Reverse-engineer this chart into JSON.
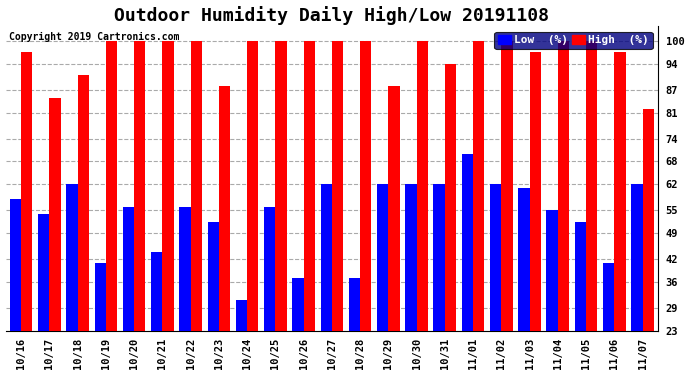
{
  "title": "Outdoor Humidity Daily High/Low 20191108",
  "copyright": "Copyright 2019 Cartronics.com",
  "categories": [
    "10/16",
    "10/17",
    "10/18",
    "10/19",
    "10/20",
    "10/21",
    "10/22",
    "10/23",
    "10/24",
    "10/25",
    "10/26",
    "10/27",
    "10/28",
    "10/29",
    "10/30",
    "10/31",
    "11/01",
    "11/02",
    "11/03",
    "11/04",
    "11/05",
    "11/06",
    "11/07"
  ],
  "high_values": [
    97,
    85,
    91,
    100,
    100,
    100,
    100,
    88,
    100,
    100,
    100,
    100,
    100,
    88,
    100,
    94,
    100,
    100,
    97,
    100,
    100,
    97,
    82
  ],
  "low_values": [
    58,
    54,
    62,
    41,
    56,
    44,
    56,
    52,
    31,
    56,
    37,
    62,
    37,
    62,
    62,
    62,
    70,
    62,
    61,
    55,
    52,
    41,
    62
  ],
  "bg_color": "#ffffff",
  "plot_bg_color": "#ffffff",
  "high_color": "#ff0000",
  "low_color": "#0000ff",
  "grid_color": "#aaaaaa",
  "yticks": [
    23,
    29,
    36,
    42,
    49,
    55,
    62,
    68,
    74,
    81,
    87,
    94,
    100
  ],
  "ylim_min": 23,
  "ylim_max": 104,
  "bar_width": 0.4,
  "title_fontsize": 13,
  "legend_fontsize": 8,
  "tick_fontsize": 7.5,
  "copyright_fontsize": 7
}
